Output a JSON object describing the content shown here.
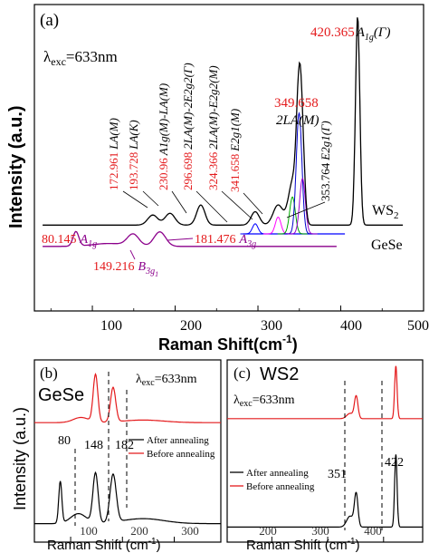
{
  "figure": {
    "text_black": "#000000",
    "text_red": "#e41a1c",
    "text_purple": "#8b008b"
  },
  "chart_data": [
    {
      "panel": "(a)",
      "type": "line",
      "xlabel": "Raman Shift(cm-1)",
      "ylabel": "Intensity (a.u.)",
      "xlim": [
        30,
        500
      ],
      "xticks": [
        100,
        200,
        300,
        400,
        500
      ],
      "excitation": "λexc=633nm",
      "grid": false,
      "series": [
        {
          "name": "WS2",
          "color": "#000000",
          "x": [
            40,
            100,
            150,
            172.961,
            180,
            193.728,
            210,
            230.96,
            250,
            280,
            296.698,
            310,
            324.366,
            335,
            341.658,
            349.658,
            353.764,
            360,
            380,
            405,
            412,
            418,
            420.365,
            423,
            430,
            450,
            470
          ],
          "y": [
            0.0,
            0.01,
            0.02,
            0.06,
            0.05,
            0.08,
            0.05,
            0.15,
            0.05,
            0.05,
            0.09,
            0.12,
            0.2,
            0.3,
            0.4,
            0.85,
            0.5,
            0.15,
            0.03,
            0.02,
            0.1,
            0.6,
            1.2,
            0.5,
            0.04,
            0.01,
            0.0
          ]
        },
        {
          "name": "GeSe",
          "color": "#8b008b",
          "x": [
            40,
            60,
            75,
            80.145,
            85,
            100,
            130,
            145,
            149.216,
            155,
            170,
            181.476,
            190,
            220,
            260,
            300,
            340,
            380
          ],
          "y": [
            0.0,
            0.01,
            0.05,
            0.1,
            0.05,
            0.02,
            0.03,
            0.08,
            0.1,
            0.07,
            0.08,
            0.1,
            0.06,
            0.03,
            0.02,
            0.02,
            0.015,
            0.01
          ]
        }
      ],
      "fit_peaks": [
        {
          "center": 296.698,
          "color": "#0000ff"
        },
        {
          "center": 324.366,
          "color": "#ff00ff"
        },
        {
          "center": 341.658,
          "color": "#00aa00"
        },
        {
          "center": 349.658,
          "color": "#0000cc"
        },
        {
          "center": 353.764,
          "color": "#9900cc"
        }
      ],
      "annotations": [
        {
          "value": "172.961",
          "mode": "LA(M)"
        },
        {
          "value": "193.728",
          "mode": "LA(K)"
        },
        {
          "value": "230.96",
          "mode": "A1g(M)-LA(M)"
        },
        {
          "value": "296.698",
          "mode": "2LA(M)-2E2g2(Γ)"
        },
        {
          "value": "324.366",
          "mode": "2LA(M)-E2g2(M)"
        },
        {
          "value": "341.658",
          "mode": "E2g1(M)"
        },
        {
          "value": "349.658",
          "mode": "2LA(M)"
        },
        {
          "value": "353.764",
          "mode": "E2g1(Γ)"
        },
        {
          "value": "420.365",
          "mode": "A1g(Γ)"
        },
        {
          "value": "80.145",
          "mode": "A1g"
        },
        {
          "value": "149.216",
          "mode": "B3g1"
        },
        {
          "value": "181.476",
          "mode": "A3g"
        }
      ]
    },
    {
      "panel": "(b)",
      "type": "line",
      "title": "GeSe",
      "excitation": "λexc=633nm",
      "xlabel": "Raman Shift (cm-1)",
      "xlim": [
        30,
        390
      ],
      "xticks": [
        100,
        200,
        300
      ],
      "peak_labels": [
        "80",
        "148",
        "182"
      ],
      "peak_positions": [
        80,
        148,
        182
      ],
      "series": [
        {
          "name": "After annealing",
          "color": "#000000",
          "x": [
            30,
            60,
            75,
            80,
            85,
            100,
            120,
            140,
            148,
            156,
            170,
            182,
            192,
            210,
            250,
            300,
            340,
            390
          ],
          "y": [
            0.0,
            0.02,
            0.1,
            0.45,
            0.1,
            0.1,
            0.15,
            0.3,
            0.55,
            0.3,
            0.35,
            0.55,
            0.25,
            0.12,
            0.06,
            0.04,
            0.03,
            0.02
          ]
        },
        {
          "name": "Before annealing",
          "color": "#e41a1c",
          "x": [
            30,
            60,
            100,
            120,
            135,
            148,
            158,
            170,
            182,
            195,
            220,
            260,
            300,
            340,
            390
          ],
          "y": [
            0.0,
            0.02,
            0.05,
            0.1,
            0.2,
            0.8,
            0.25,
            0.3,
            0.6,
            0.2,
            0.08,
            0.05,
            0.04,
            0.03,
            0.02
          ]
        }
      ]
    },
    {
      "panel": "(c)",
      "type": "line",
      "title": "WS2",
      "excitation": "λexc=633nm",
      "xlabel": "Raman Shift (cm-1)",
      "xlim": [
        120,
        470
      ],
      "xticks": [
        200,
        300,
        400
      ],
      "peak_labels": [
        "351",
        "422"
      ],
      "peak_positions": [
        351,
        422
      ],
      "series": [
        {
          "name": "After annealing",
          "color": "#000000",
          "x": [
            120,
            200,
            300,
            330,
            345,
            351,
            357,
            370,
            410,
            418,
            422,
            426,
            435,
            470
          ],
          "y": [
            0.0,
            0.01,
            0.02,
            0.04,
            0.2,
            0.5,
            0.15,
            0.03,
            0.05,
            0.3,
            1.0,
            0.25,
            0.03,
            0.01
          ]
        },
        {
          "name": "Before annealing",
          "color": "#e41a1c",
          "x": [
            120,
            200,
            300,
            330,
            345,
            351,
            357,
            370,
            410,
            418,
            422,
            426,
            435,
            470
          ],
          "y": [
            0.0,
            0.01,
            0.02,
            0.04,
            0.15,
            0.45,
            0.12,
            0.03,
            0.05,
            0.3,
            1.0,
            0.25,
            0.03,
            0.01
          ]
        }
      ]
    }
  ],
  "text": {
    "ylabel_a": "Intensity (a.u.)",
    "ylabel_b": "Intensity (a.u.)",
    "xlabel_a_main": "Raman Shift(cm",
    "xlabel_a_sup": "-1",
    "xlabel_a_tail": ")",
    "xlabel_bc_main": "Raman Shift (cm",
    "xlabel_bc_sup": "-1",
    "xlabel_bc_tail": ")",
    "panel_a": "(a)",
    "panel_b": "(b)",
    "panel_c": "(c)",
    "lambda_a": "λ",
    "lambda_sub": "exc",
    "lambda_val": "=633nm",
    "series_ws2": "WS",
    "series_ws2_sub": "2",
    "series_gese": "GeSe",
    "b_title": "GeSe",
    "c_title": "WS2",
    "legend_after": "After annealing",
    "legend_before": "Before annealing",
    "tick_a_100": "100",
    "tick_a_200": "200",
    "tick_a_300": "300",
    "tick_a_400": "400",
    "tick_a_500": "500",
    "tick_b_100": "100",
    "tick_b_200": "200",
    "tick_b_300": "300",
    "tick_c_200": "200",
    "tick_c_300": "300",
    "tick_c_400": "400",
    "peak_b_80": "80",
    "peak_b_148": "148",
    "peak_b_182": "182",
    "peak_c_351": "351",
    "peak_c_422": "422",
    "ann_420": "420.365",
    "ann_420_mode": "A",
    "ann_420_sub": "1g",
    "ann_420_tail": "(Γ)",
    "ann_349": "349.658",
    "ann_349_mode": "2LA(M)",
    "ann_172": "172.961",
    "ann_172_mode": "LA(M)",
    "ann_193": "193.728",
    "ann_193_mode": "LA(K)",
    "ann_230": "230.96",
    "ann_230_mode": "A1g(M)-LA(M)",
    "ann_296": "296.698",
    "ann_296_mode": "2LA(M)-2E2g2(Γ)",
    "ann_324": "324.366",
    "ann_324_mode": "2LA(M)-E2g2(M)",
    "ann_341": "341.658",
    "ann_341_mode": "E2g1(M)",
    "ann_353": "353.764",
    "ann_353_mode": "E2g1(Γ)",
    "ann_80": "80.145",
    "ann_80_mode": "A",
    "ann_80_sub": "1g",
    "ann_149": "149.216",
    "ann_149_mode": "B",
    "ann_149_sub": "3g",
    "ann_149_subsub": "1",
    "ann_181": "181.476",
    "ann_181_mode": "A",
    "ann_181_sub": "3g"
  }
}
